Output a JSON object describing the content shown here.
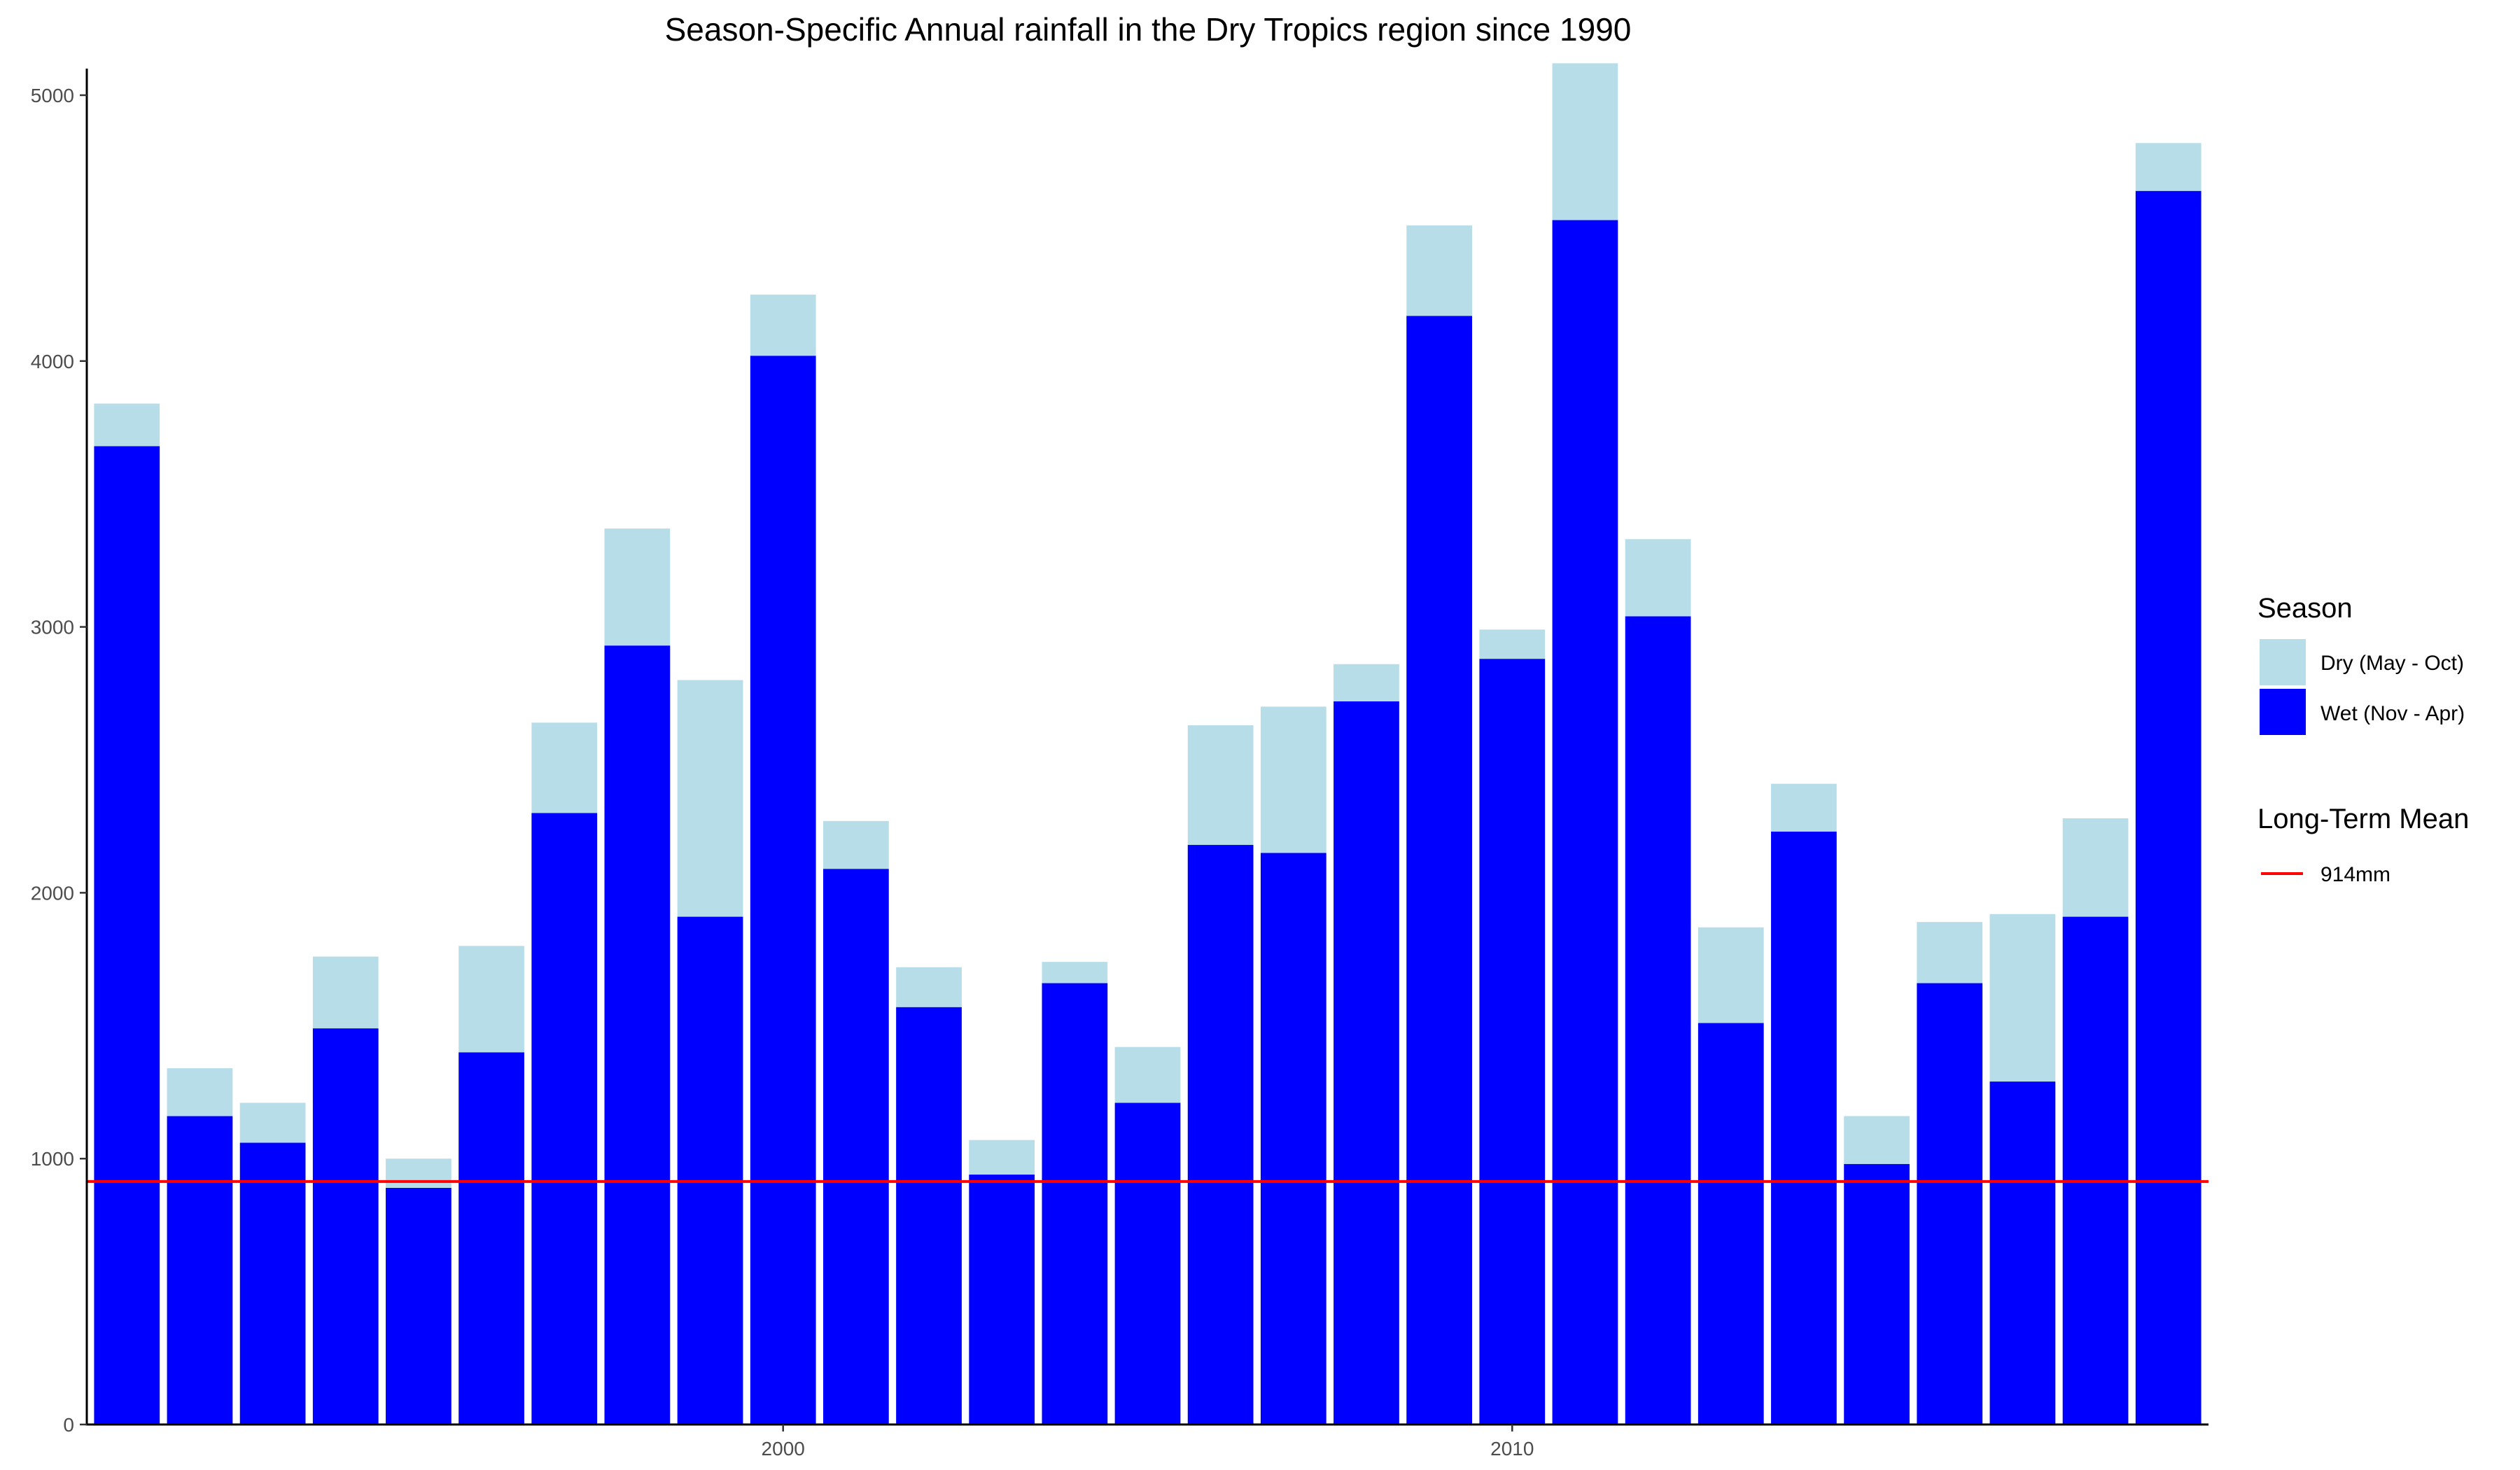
{
  "chart_data": {
    "type": "bar",
    "stacked": true,
    "title": "Season-Specific Annual rainfall in the Dry Tropics region since 1990",
    "xlabel": "",
    "ylabel": "",
    "x": [
      1991,
      1992,
      1993,
      1994,
      1995,
      1996,
      1997,
      1998,
      1999,
      2000,
      2001,
      2002,
      2003,
      2004,
      2005,
      2006,
      2007,
      2008,
      2009,
      2010,
      2011,
      2012,
      2013,
      2014,
      2015,
      2016,
      2017,
      2018,
      2019
    ],
    "xlim": [
      1990.45,
      2019.55
    ],
    "ylim": [
      0,
      5100
    ],
    "x_ticks": [
      2000,
      2010
    ],
    "x_tick_labels": [
      "2000",
      "2010"
    ],
    "y_ticks": [
      0,
      1000,
      2000,
      3000,
      4000,
      5000
    ],
    "y_tick_labels": [
      "0",
      "1000",
      "2000",
      "3000",
      "4000",
      "5000"
    ],
    "series": [
      {
        "name": "Wet (Nov - Apr)",
        "color": "#0000ff",
        "values": [
          3680,
          1160,
          1060,
          1490,
          890,
          1400,
          2300,
          2930,
          1910,
          4020,
          2090,
          1570,
          940,
          1660,
          1210,
          2180,
          2150,
          2720,
          4170,
          2880,
          4530,
          3040,
          1510,
          2230,
          980,
          1660,
          1290,
          1910,
          4640
        ]
      },
      {
        "name": "Dry (May - Oct)",
        "color": "#b7dde9",
        "values": [
          160,
          180,
          150,
          270,
          110,
          400,
          340,
          440,
          890,
          230,
          180,
          150,
          130,
          80,
          210,
          450,
          550,
          140,
          340,
          110,
          590,
          290,
          360,
          180,
          180,
          230,
          630,
          370,
          180
        ]
      }
    ],
    "reference_line": {
      "label": "914mm",
      "value": 914,
      "color": "#ff0000"
    },
    "grid": false,
    "legend_position": "right"
  },
  "legend": {
    "season_title": "Season",
    "season_items": [
      {
        "label": "Dry (May - Oct)",
        "color": "#b7dde9"
      },
      {
        "label": "Wet (Nov - Apr)",
        "color": "#0000ff"
      }
    ],
    "mean_title": "Long-Term Mean",
    "mean_label": "914mm"
  }
}
